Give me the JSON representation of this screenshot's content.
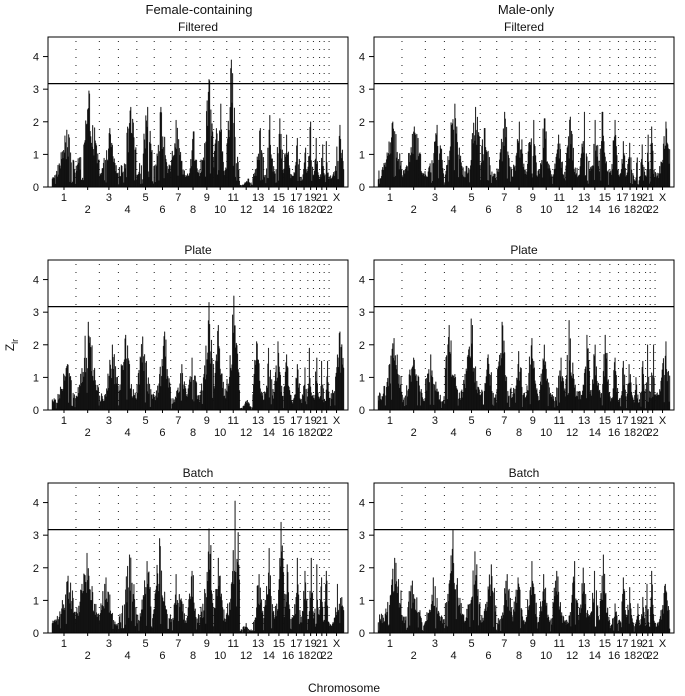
{
  "figure": {
    "column_titles": [
      "Female-containing",
      "Male-only"
    ],
    "row_titles": [
      "Filtered",
      "Plate",
      "Batch"
    ],
    "xlabel": "Chromosome",
    "ylabel_main": "Z",
    "ylabel_sub": "lr",
    "threshold": 3.17,
    "colors": {
      "bars": "#111111",
      "dots": "#333333",
      "frame": "#000000",
      "threshold": "#000000"
    }
  },
  "chart_data": [
    {
      "type": "bar",
      "title": "Filtered",
      "column": "Female-containing",
      "ylim": [
        0,
        4.6
      ],
      "yticks": [
        0,
        1,
        2,
        3,
        4
      ],
      "threshold": 3.17,
      "chromosomes": [
        "1",
        "2",
        "3",
        "4",
        "5",
        "6",
        "7",
        "8",
        "9",
        "10",
        "11",
        "12",
        "13",
        "14",
        "15",
        "16",
        "17",
        "18",
        "19",
        "20",
        "21",
        "22",
        "X"
      ],
      "peaks": [
        {
          "chromosome": "1",
          "max_z": 1.75
        },
        {
          "chromosome": "2",
          "max_z": 2.95
        },
        {
          "chromosome": "3",
          "max_z": 1.8
        },
        {
          "chromosome": "4",
          "max_z": 2.45
        },
        {
          "chromosome": "5",
          "max_z": 2.45
        },
        {
          "chromosome": "6",
          "max_z": 2.45
        },
        {
          "chromosome": "7",
          "max_z": 2.05
        },
        {
          "chromosome": "8",
          "max_z": 1.7
        },
        {
          "chromosome": "9",
          "max_z": 3.3
        },
        {
          "chromosome": "10",
          "max_z": 2.55
        },
        {
          "chromosome": "11",
          "max_z": 3.9
        },
        {
          "chromosome": "12",
          "max_z": 0.25
        },
        {
          "chromosome": "13",
          "max_z": 1.8
        },
        {
          "chromosome": "14",
          "max_z": 2.2
        },
        {
          "chromosome": "15",
          "max_z": 2.1
        },
        {
          "chromosome": "16",
          "max_z": 1.6
        },
        {
          "chromosome": "17",
          "max_z": 1.5
        },
        {
          "chromosome": "18",
          "max_z": 1.2
        },
        {
          "chromosome": "19",
          "max_z": 2.0
        },
        {
          "chromosome": "20",
          "max_z": 1.5
        },
        {
          "chromosome": "21",
          "max_z": 1.3
        },
        {
          "chromosome": "22",
          "max_z": 1.4
        },
        {
          "chromosome": "X",
          "max_z": 1.9
        }
      ]
    },
    {
      "type": "bar",
      "title": "Filtered",
      "column": "Male-only",
      "ylim": [
        0,
        4.6
      ],
      "yticks": [
        0,
        1,
        2,
        3,
        4
      ],
      "threshold": 3.17,
      "chromosomes": [
        "1",
        "2",
        "3",
        "4",
        "5",
        "6",
        "7",
        "8",
        "9",
        "10",
        "11",
        "12",
        "13",
        "14",
        "15",
        "16",
        "17",
        "18",
        "19",
        "20",
        "21",
        "22",
        "X"
      ],
      "peaks": [
        {
          "chromosome": "1",
          "max_z": 2.0
        },
        {
          "chromosome": "2",
          "max_z": 1.85
        },
        {
          "chromosome": "3",
          "max_z": 1.9
        },
        {
          "chromosome": "4",
          "max_z": 2.55
        },
        {
          "chromosome": "5",
          "max_z": 2.45
        },
        {
          "chromosome": "6",
          "max_z": 1.8
        },
        {
          "chromosome": "7",
          "max_z": 2.3
        },
        {
          "chromosome": "8",
          "max_z": 2.0
        },
        {
          "chromosome": "9",
          "max_z": 2.05
        },
        {
          "chromosome": "10",
          "max_z": 2.1
        },
        {
          "chromosome": "11",
          "max_z": 1.6
        },
        {
          "chromosome": "12",
          "max_z": 2.15
        },
        {
          "chromosome": "13",
          "max_z": 2.3
        },
        {
          "chromosome": "14",
          "max_z": 2.05
        },
        {
          "chromosome": "15",
          "max_z": 2.3
        },
        {
          "chromosome": "16",
          "max_z": 2.05
        },
        {
          "chromosome": "17",
          "max_z": 1.4
        },
        {
          "chromosome": "18",
          "max_z": 1.35
        },
        {
          "chromosome": "19",
          "max_z": 0.9
        },
        {
          "chromosome": "20",
          "max_z": 1.3
        },
        {
          "chromosome": "21",
          "max_z": 1.6
        },
        {
          "chromosome": "22",
          "max_z": 1.85
        },
        {
          "chromosome": "X",
          "max_z": 2.0
        }
      ]
    },
    {
      "type": "bar",
      "title": "Plate",
      "column": "Female-containing",
      "ylim": [
        0,
        4.6
      ],
      "yticks": [
        0,
        1,
        2,
        3,
        4
      ],
      "threshold": 3.17,
      "chromosomes": [
        "1",
        "2",
        "3",
        "4",
        "5",
        "6",
        "7",
        "8",
        "9",
        "10",
        "11",
        "12",
        "13",
        "14",
        "15",
        "16",
        "17",
        "18",
        "19",
        "20",
        "21",
        "22",
        "X"
      ],
      "peaks": [
        {
          "chromosome": "1",
          "max_z": 1.4
        },
        {
          "chromosome": "2",
          "max_z": 2.7
        },
        {
          "chromosome": "3",
          "max_z": 2.0
        },
        {
          "chromosome": "4",
          "max_z": 2.3
        },
        {
          "chromosome": "5",
          "max_z": 2.25
        },
        {
          "chromosome": "6",
          "max_z": 2.4
        },
        {
          "chromosome": "7",
          "max_z": 1.4
        },
        {
          "chromosome": "8",
          "max_z": 1.6
        },
        {
          "chromosome": "9",
          "max_z": 3.3
        },
        {
          "chromosome": "10",
          "max_z": 2.6
        },
        {
          "chromosome": "11",
          "max_z": 3.5
        },
        {
          "chromosome": "12",
          "max_z": 0.3
        },
        {
          "chromosome": "13",
          "max_z": 2.1
        },
        {
          "chromosome": "14",
          "max_z": 1.9
        },
        {
          "chromosome": "15",
          "max_z": 2.1
        },
        {
          "chromosome": "16",
          "max_z": 1.7
        },
        {
          "chromosome": "17",
          "max_z": 1.4
        },
        {
          "chromosome": "18",
          "max_z": 1.3
        },
        {
          "chromosome": "19",
          "max_z": 1.9
        },
        {
          "chromosome": "20",
          "max_z": 1.6
        },
        {
          "chromosome": "21",
          "max_z": 1.5
        },
        {
          "chromosome": "22",
          "max_z": 1.5
        },
        {
          "chromosome": "X",
          "max_z": 2.4
        }
      ]
    },
    {
      "type": "bar",
      "title": "Plate",
      "column": "Male-only",
      "ylim": [
        0,
        4.6
      ],
      "yticks": [
        0,
        1,
        2,
        3,
        4
      ],
      "threshold": 3.17,
      "chromosomes": [
        "1",
        "2",
        "3",
        "4",
        "5",
        "6",
        "7",
        "8",
        "9",
        "10",
        "11",
        "12",
        "13",
        "14",
        "15",
        "16",
        "17",
        "18",
        "19",
        "20",
        "21",
        "22",
        "X"
      ],
      "peaks": [
        {
          "chromosome": "1",
          "max_z": 2.2
        },
        {
          "chromosome": "2",
          "max_z": 1.6
        },
        {
          "chromosome": "3",
          "max_z": 1.7
        },
        {
          "chromosome": "4",
          "max_z": 2.6
        },
        {
          "chromosome": "5",
          "max_z": 2.8
        },
        {
          "chromosome": "6",
          "max_z": 1.7
        },
        {
          "chromosome": "7",
          "max_z": 2.7
        },
        {
          "chromosome": "8",
          "max_z": 1.8
        },
        {
          "chromosome": "9",
          "max_z": 2.2
        },
        {
          "chromosome": "10",
          "max_z": 2.0
        },
        {
          "chromosome": "11",
          "max_z": 1.6
        },
        {
          "chromosome": "12",
          "max_z": 2.75
        },
        {
          "chromosome": "13",
          "max_z": 2.3
        },
        {
          "chromosome": "14",
          "max_z": 2.0
        },
        {
          "chromosome": "15",
          "max_z": 2.3
        },
        {
          "chromosome": "16",
          "max_z": 1.6
        },
        {
          "chromosome": "17",
          "max_z": 1.5
        },
        {
          "chromosome": "18",
          "max_z": 1.4
        },
        {
          "chromosome": "19",
          "max_z": 1.0
        },
        {
          "chromosome": "20",
          "max_z": 1.5
        },
        {
          "chromosome": "21",
          "max_z": 2.0
        },
        {
          "chromosome": "22",
          "max_z": 2.0
        },
        {
          "chromosome": "X",
          "max_z": 2.1
        }
      ]
    },
    {
      "type": "bar",
      "title": "Batch",
      "column": "Female-containing",
      "ylim": [
        0,
        4.6
      ],
      "yticks": [
        0,
        1,
        2,
        3,
        4
      ],
      "threshold": 3.17,
      "chromosomes": [
        "1",
        "2",
        "3",
        "4",
        "5",
        "6",
        "7",
        "8",
        "9",
        "10",
        "11",
        "12",
        "13",
        "14",
        "15",
        "16",
        "17",
        "18",
        "19",
        "20",
        "21",
        "22",
        "X"
      ],
      "peaks": [
        {
          "chromosome": "1",
          "max_z": 1.75
        },
        {
          "chromosome": "2",
          "max_z": 2.45
        },
        {
          "chromosome": "3",
          "max_z": 1.7
        },
        {
          "chromosome": "4",
          "max_z": 2.4
        },
        {
          "chromosome": "5",
          "max_z": 2.2
        },
        {
          "chromosome": "6",
          "max_z": 2.9
        },
        {
          "chromosome": "7",
          "max_z": 1.8
        },
        {
          "chromosome": "8",
          "max_z": 1.9
        },
        {
          "chromosome": "9",
          "max_z": 3.2
        },
        {
          "chromosome": "10",
          "max_z": 2.3
        },
        {
          "chromosome": "11",
          "max_z": 4.05
        },
        {
          "chromosome": "12",
          "max_z": 0.3
        },
        {
          "chromosome": "13",
          "max_z": 1.8
        },
        {
          "chromosome": "14",
          "max_z": 2.6
        },
        {
          "chromosome": "15",
          "max_z": 3.4
        },
        {
          "chromosome": "16",
          "max_z": 2.1
        },
        {
          "chromosome": "17",
          "max_z": 2.3
        },
        {
          "chromosome": "18",
          "max_z": 1.9
        },
        {
          "chromosome": "19",
          "max_z": 2.3
        },
        {
          "chromosome": "20",
          "max_z": 2.1
        },
        {
          "chromosome": "21",
          "max_z": 1.7
        },
        {
          "chromosome": "22",
          "max_z": 1.9
        },
        {
          "chromosome": "X",
          "max_z": 1.5
        }
      ]
    },
    {
      "type": "bar",
      "title": "Batch",
      "column": "Male-only",
      "ylim": [
        0,
        4.6
      ],
      "yticks": [
        0,
        1,
        2,
        3,
        4
      ],
      "threshold": 3.17,
      "chromosomes": [
        "1",
        "2",
        "3",
        "4",
        "5",
        "6",
        "7",
        "8",
        "9",
        "10",
        "11",
        "12",
        "13",
        "14",
        "15",
        "16",
        "17",
        "18",
        "19",
        "20",
        "21",
        "22",
        "X"
      ],
      "peaks": [
        {
          "chromosome": "1",
          "max_z": 2.3
        },
        {
          "chromosome": "2",
          "max_z": 1.6
        },
        {
          "chromosome": "3",
          "max_z": 1.7
        },
        {
          "chromosome": "4",
          "max_z": 3.15
        },
        {
          "chromosome": "5",
          "max_z": 2.5
        },
        {
          "chromosome": "6",
          "max_z": 2.1
        },
        {
          "chromosome": "7",
          "max_z": 1.8
        },
        {
          "chromosome": "8",
          "max_z": 1.7
        },
        {
          "chromosome": "9",
          "max_z": 2.2
        },
        {
          "chromosome": "10",
          "max_z": 1.8
        },
        {
          "chromosome": "11",
          "max_z": 1.9
        },
        {
          "chromosome": "12",
          "max_z": 2.2
        },
        {
          "chromosome": "13",
          "max_z": 2.0
        },
        {
          "chromosome": "14",
          "max_z": 1.9
        },
        {
          "chromosome": "15",
          "max_z": 2.4
        },
        {
          "chromosome": "16",
          "max_z": 0.9
        },
        {
          "chromosome": "17",
          "max_z": 1.7
        },
        {
          "chromosome": "18",
          "max_z": 1.4
        },
        {
          "chromosome": "19",
          "max_z": 0.9
        },
        {
          "chromosome": "20",
          "max_z": 1.1
        },
        {
          "chromosome": "21",
          "max_z": 1.5
        },
        {
          "chromosome": "22",
          "max_z": 1.9
        },
        {
          "chromosome": "X",
          "max_z": 1.5
        }
      ]
    }
  ]
}
